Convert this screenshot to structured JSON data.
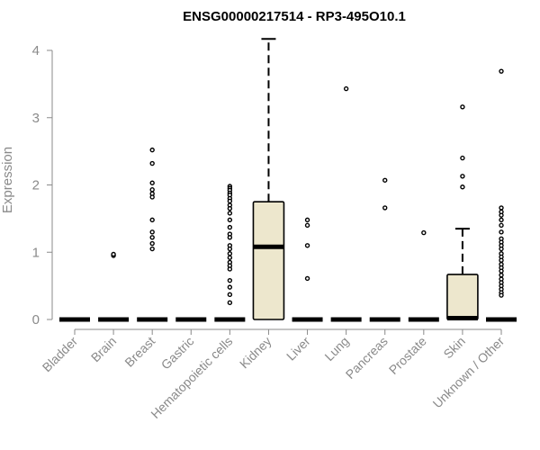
{
  "chart_data": {
    "type": "boxplot",
    "title": "ENSG00000217514 - RP3-495O10.1",
    "ylabel": "Expression",
    "xlabel": "",
    "ylim": [
      0,
      4.2
    ],
    "yticks": [
      0,
      1,
      2,
      3,
      4
    ],
    "box_color": "#ede7cd",
    "grid": false,
    "categories": [
      "Bladder",
      "Brain",
      "Breast",
      "Gastric",
      "Hematopoietic cells",
      "Kidney",
      "Liver",
      "Lung",
      "Pancreas",
      "Prostate",
      "Skin",
      "Unknown / Other"
    ],
    "boxes": [
      {
        "category": "Bladder",
        "min": 0,
        "q1": 0,
        "median": 0,
        "q3": 0,
        "max": 0,
        "outliers": []
      },
      {
        "category": "Brain",
        "min": 0,
        "q1": 0,
        "median": 0,
        "q3": 0,
        "max": 0,
        "outliers": [
          0.95,
          0.97
        ]
      },
      {
        "category": "Breast",
        "min": 0,
        "q1": 0,
        "median": 0,
        "q3": 0,
        "max": 0,
        "outliers": [
          2.52,
          2.32,
          2.03,
          1.93,
          1.87,
          1.82,
          1.48,
          1.3,
          1.22,
          1.13,
          1.05
        ]
      },
      {
        "category": "Gastric",
        "min": 0,
        "q1": 0,
        "median": 0,
        "q3": 0,
        "max": 0,
        "outliers": []
      },
      {
        "category": "Hematopoietic cells",
        "min": 0,
        "q1": 0,
        "median": 0,
        "q3": 0,
        "max": 0,
        "outliers": [
          1.98,
          1.95,
          1.92,
          1.88,
          1.85,
          1.8,
          1.76,
          1.7,
          1.65,
          1.58,
          1.48,
          1.37,
          1.27,
          1.22,
          1.1,
          1.05,
          0.98,
          0.92,
          0.85,
          0.8,
          0.75,
          0.58,
          0.48,
          0.37,
          0.25
        ]
      },
      {
        "category": "Kidney",
        "min": 0,
        "q1": 0,
        "median": 1.08,
        "q3": 1.75,
        "max": 4.17,
        "outliers": []
      },
      {
        "category": "Liver",
        "min": 0,
        "q1": 0,
        "median": 0,
        "q3": 0,
        "max": 0,
        "outliers": [
          1.48,
          1.4,
          1.1,
          0.61
        ]
      },
      {
        "category": "Lung",
        "min": 0,
        "q1": 0,
        "median": 0,
        "q3": 0,
        "max": 0,
        "outliers": [
          3.43
        ]
      },
      {
        "category": "Pancreas",
        "min": 0,
        "q1": 0,
        "median": 0,
        "q3": 0,
        "max": 0,
        "outliers": [
          2.07,
          1.66
        ]
      },
      {
        "category": "Prostate",
        "min": 0,
        "q1": 0,
        "median": 0,
        "q3": 0,
        "max": 0,
        "outliers": [
          1.29
        ]
      },
      {
        "category": "Skin",
        "min": 0,
        "q1": 0,
        "median": 0.02,
        "q3": 0.67,
        "max": 1.35,
        "outliers": [
          3.16,
          2.4,
          2.13,
          1.97
        ]
      },
      {
        "category": "Unknown / Other",
        "min": 0,
        "q1": 0,
        "median": 0,
        "q3": 0,
        "max": 0,
        "outliers": [
          3.69,
          1.66,
          1.6,
          1.55,
          1.48,
          1.4,
          1.3,
          1.2,
          1.15,
          1.1,
          1.05,
          0.98,
          0.93,
          0.88,
          0.82,
          0.77,
          0.72,
          0.66,
          0.6,
          0.55,
          0.5,
          0.45,
          0.4,
          0.36
        ]
      }
    ]
  }
}
